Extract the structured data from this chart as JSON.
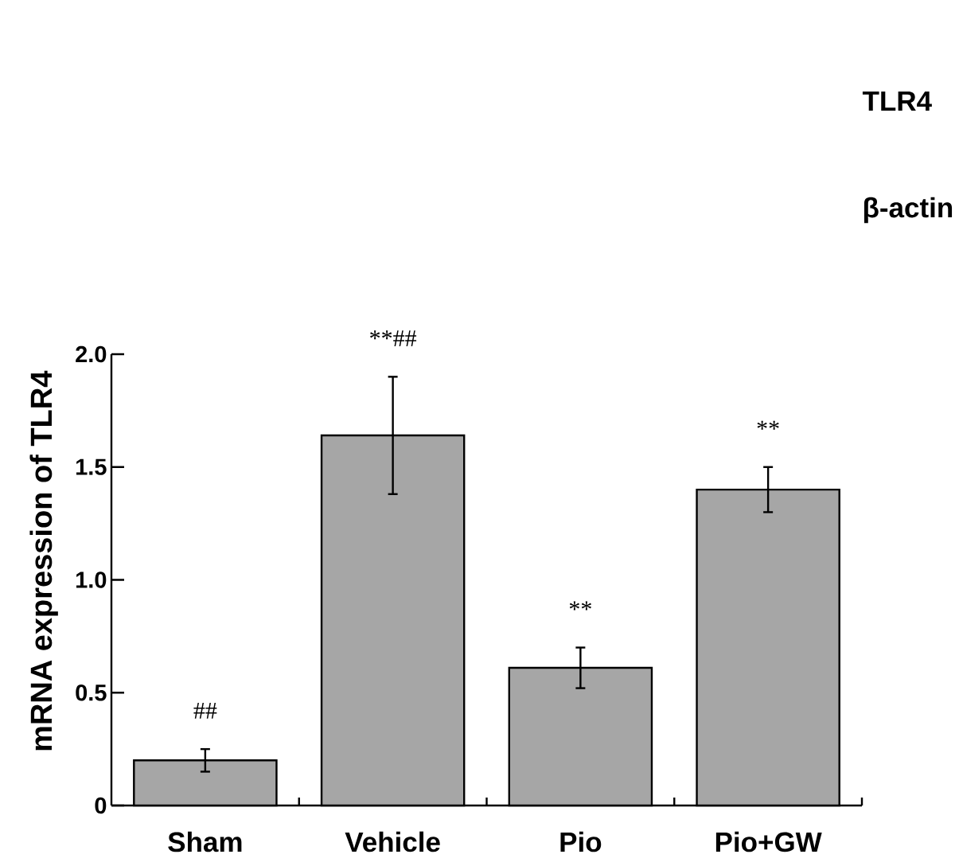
{
  "chart_data": {
    "type": "bar",
    "ylabel": "mRNA expression of TLR4",
    "categories": [
      "Sham",
      "Vehicle",
      "Pio",
      "Pio+GW"
    ],
    "values": [
      0.2,
      1.64,
      0.61,
      1.4
    ],
    "errors": [
      0.05,
      0.26,
      0.09,
      0.1
    ],
    "color": "#a6a6a6",
    "ylim": [
      0,
      2
    ],
    "yticks": [
      0,
      0.5,
      {
        "value": 1,
        "label": "1.0"
      },
      1.5,
      {
        "value": 2,
        "label": "2.0"
      }
    ],
    "annotations": [
      "##",
      "**##",
      "**",
      "**",
      "TLR4",
      "β-actin"
    ]
  }
}
